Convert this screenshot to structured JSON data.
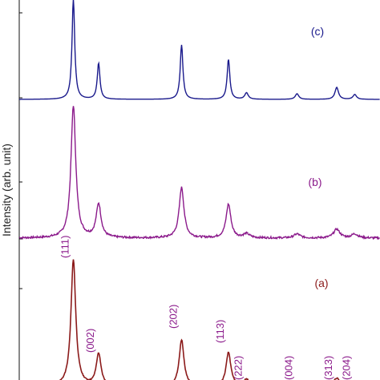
{
  "chart_data": {
    "type": "line",
    "title": "",
    "xlabel": "",
    "ylabel": "Intensity (arb. unit)",
    "x_range": [
      0,
      100
    ],
    "grid": false,
    "series": [
      {
        "name": "(c)",
        "color": "#1a1a8c",
        "noise": 0.0,
        "peaks": [
          {
            "x": 15,
            "height": 125
          },
          {
            "x": 22,
            "height": 45
          },
          {
            "x": 45,
            "height": 68
          },
          {
            "x": 58,
            "height": 50
          },
          {
            "x": 63,
            "height": 8
          },
          {
            "x": 77,
            "height": 7
          },
          {
            "x": 88,
            "height": 15
          },
          {
            "x": 93,
            "height": 6
          }
        ]
      },
      {
        "name": "(b)",
        "color": "#8b1a8b",
        "noise": 1.2,
        "peaks": [
          {
            "x": 15,
            "height": 165
          },
          {
            "x": 22,
            "height": 42
          },
          {
            "x": 45,
            "height": 63
          },
          {
            "x": 58,
            "height": 42
          },
          {
            "x": 63,
            "height": 5
          },
          {
            "x": 77,
            "height": 5
          },
          {
            "x": 88,
            "height": 11
          },
          {
            "x": 93,
            "height": 5
          }
        ]
      },
      {
        "name": "(a)",
        "color": "#8b1a1a",
        "noise": 0.6,
        "peaks": [
          {
            "x": 15,
            "height": 158
          },
          {
            "x": 22,
            "height": 40
          },
          {
            "x": 45,
            "height": 58
          },
          {
            "x": 58,
            "height": 42
          },
          {
            "x": 63,
            "height": 8
          },
          {
            "x": 77,
            "height": 6
          },
          {
            "x": 88,
            "height": 10
          },
          {
            "x": 93,
            "height": 6
          }
        ]
      }
    ],
    "annotations": [
      {
        "text": "(111)",
        "x": 15
      },
      {
        "text": "(002)",
        "x": 22
      },
      {
        "text": "(202)",
        "x": 45
      },
      {
        "text": "(113)",
        "x": 58
      },
      {
        "text": "(222)",
        "x": 63
      },
      {
        "text": "(004)",
        "x": 77
      },
      {
        "text": "(313)",
        "x": 88
      },
      {
        "text": "(204)",
        "x": 93
      }
    ]
  }
}
